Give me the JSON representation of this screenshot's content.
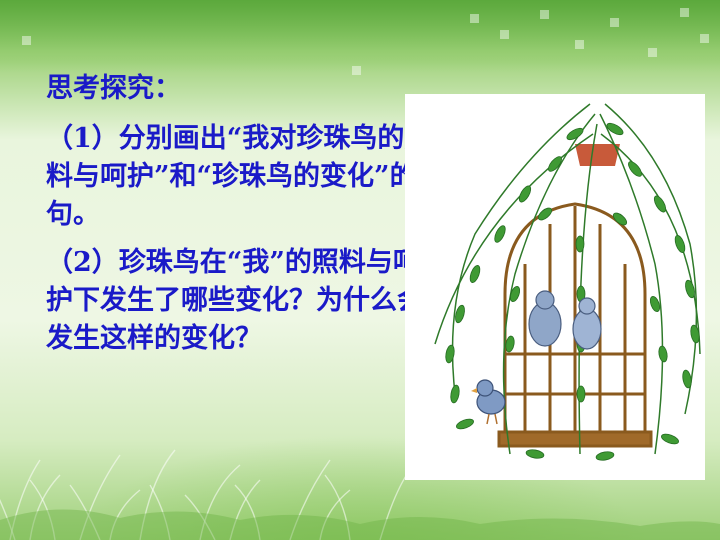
{
  "slide": {
    "heading": "思考探究：",
    "question1": "（1）分别画出“我对珍珠鸟的照料与呵护”和“珍珠鸟的变化”的语句。",
    "question2": "（2）珍珠鸟在“我”的照料与呵护下发生了哪些变化？为什么会发生这样的变化？"
  },
  "colors": {
    "text": "#1a1ac8",
    "background": "#eef7e4",
    "accent": "#7fc25b"
  }
}
